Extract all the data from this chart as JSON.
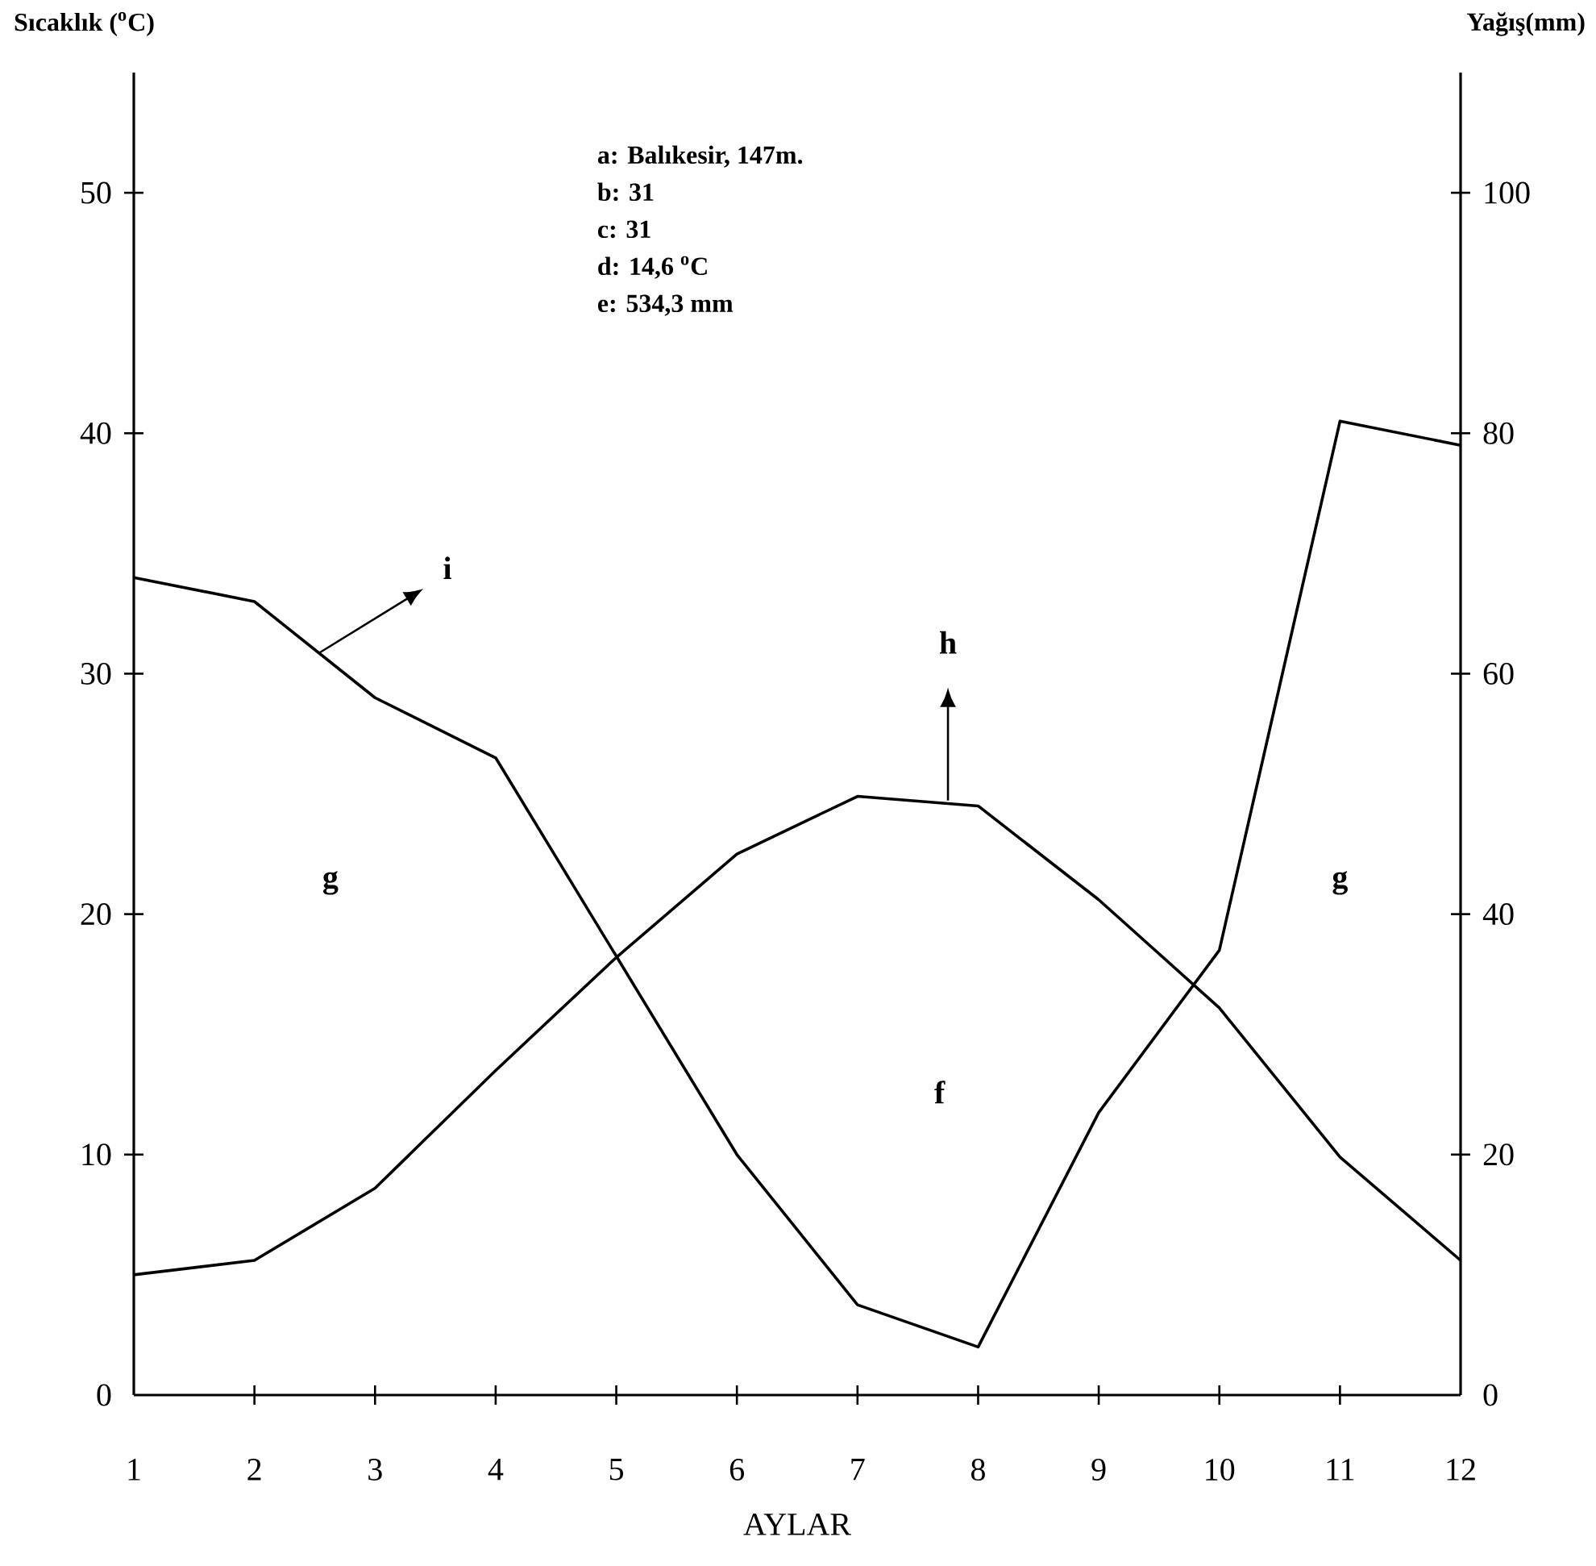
{
  "chart_data": {
    "type": "line",
    "ylabel": "Sıcaklık ($^{o}$C)",
    "y2label": "Yağış(mm)",
    "xlabel": "AYLAR",
    "x": [
      1,
      2,
      3,
      4,
      5,
      6,
      7,
      8,
      9,
      10,
      11,
      12
    ],
    "series": [
      {
        "color": "#000000",
        "values": [
          5.0,
          5.6,
          8.6,
          13.5,
          18.2,
          22.5,
          24.9,
          24.5,
          20.6,
          16.1,
          9.9,
          5.6
        ]
      },
      {
        "color": "#000000",
        "axis": "y2",
        "values": [
          68,
          66,
          58,
          53,
          36.5,
          20,
          7.5,
          4,
          23.5,
          37,
          81,
          79
        ]
      }
    ],
    "xlim": [
      1,
      12
    ],
    "xticks": [
      1,
      2,
      3,
      4,
      5,
      6,
      7,
      8,
      9,
      10,
      11,
      12
    ],
    "ylim": [
      0,
      55
    ],
    "yticks": [
      0,
      10,
      20,
      30,
      40,
      50
    ],
    "y2lim": [
      0,
      110
    ],
    "y2ticks": [
      0,
      20,
      40,
      60,
      80,
      100
    ],
    "annotations": [
      "a: Balıkesir, 147m.",
      "b: 31",
      "c: 31",
      "d: 14,6 $^{o}$C",
      "e: 534,3 mm",
      "g",
      "g",
      "f",
      "h",
      "i"
    ]
  }
}
